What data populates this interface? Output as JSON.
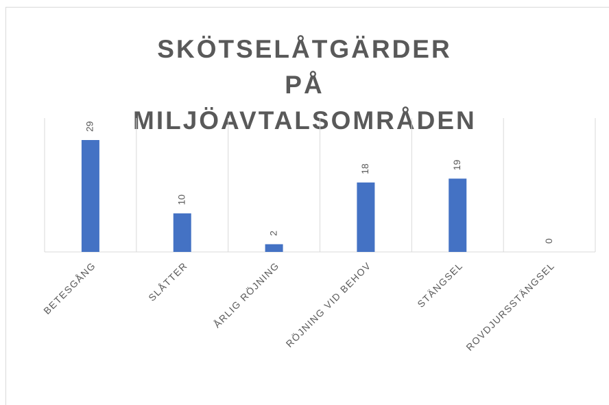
{
  "chart_data": {
    "type": "bar",
    "title": "SKÖTSELÅTGÄRDER PÅ MILJÖAVTALSOMRÅDEN",
    "categories": [
      "BETESGÅNG",
      "SLÅTTER",
      "ÅRLIG RÖJNING",
      "RÖJNING VID BEHOV",
      "STÄNGSEL",
      "ROVDJURSSTÄNGSEL"
    ],
    "values": [
      29,
      10,
      2,
      18,
      19,
      0
    ],
    "color": "#4472c4"
  }
}
